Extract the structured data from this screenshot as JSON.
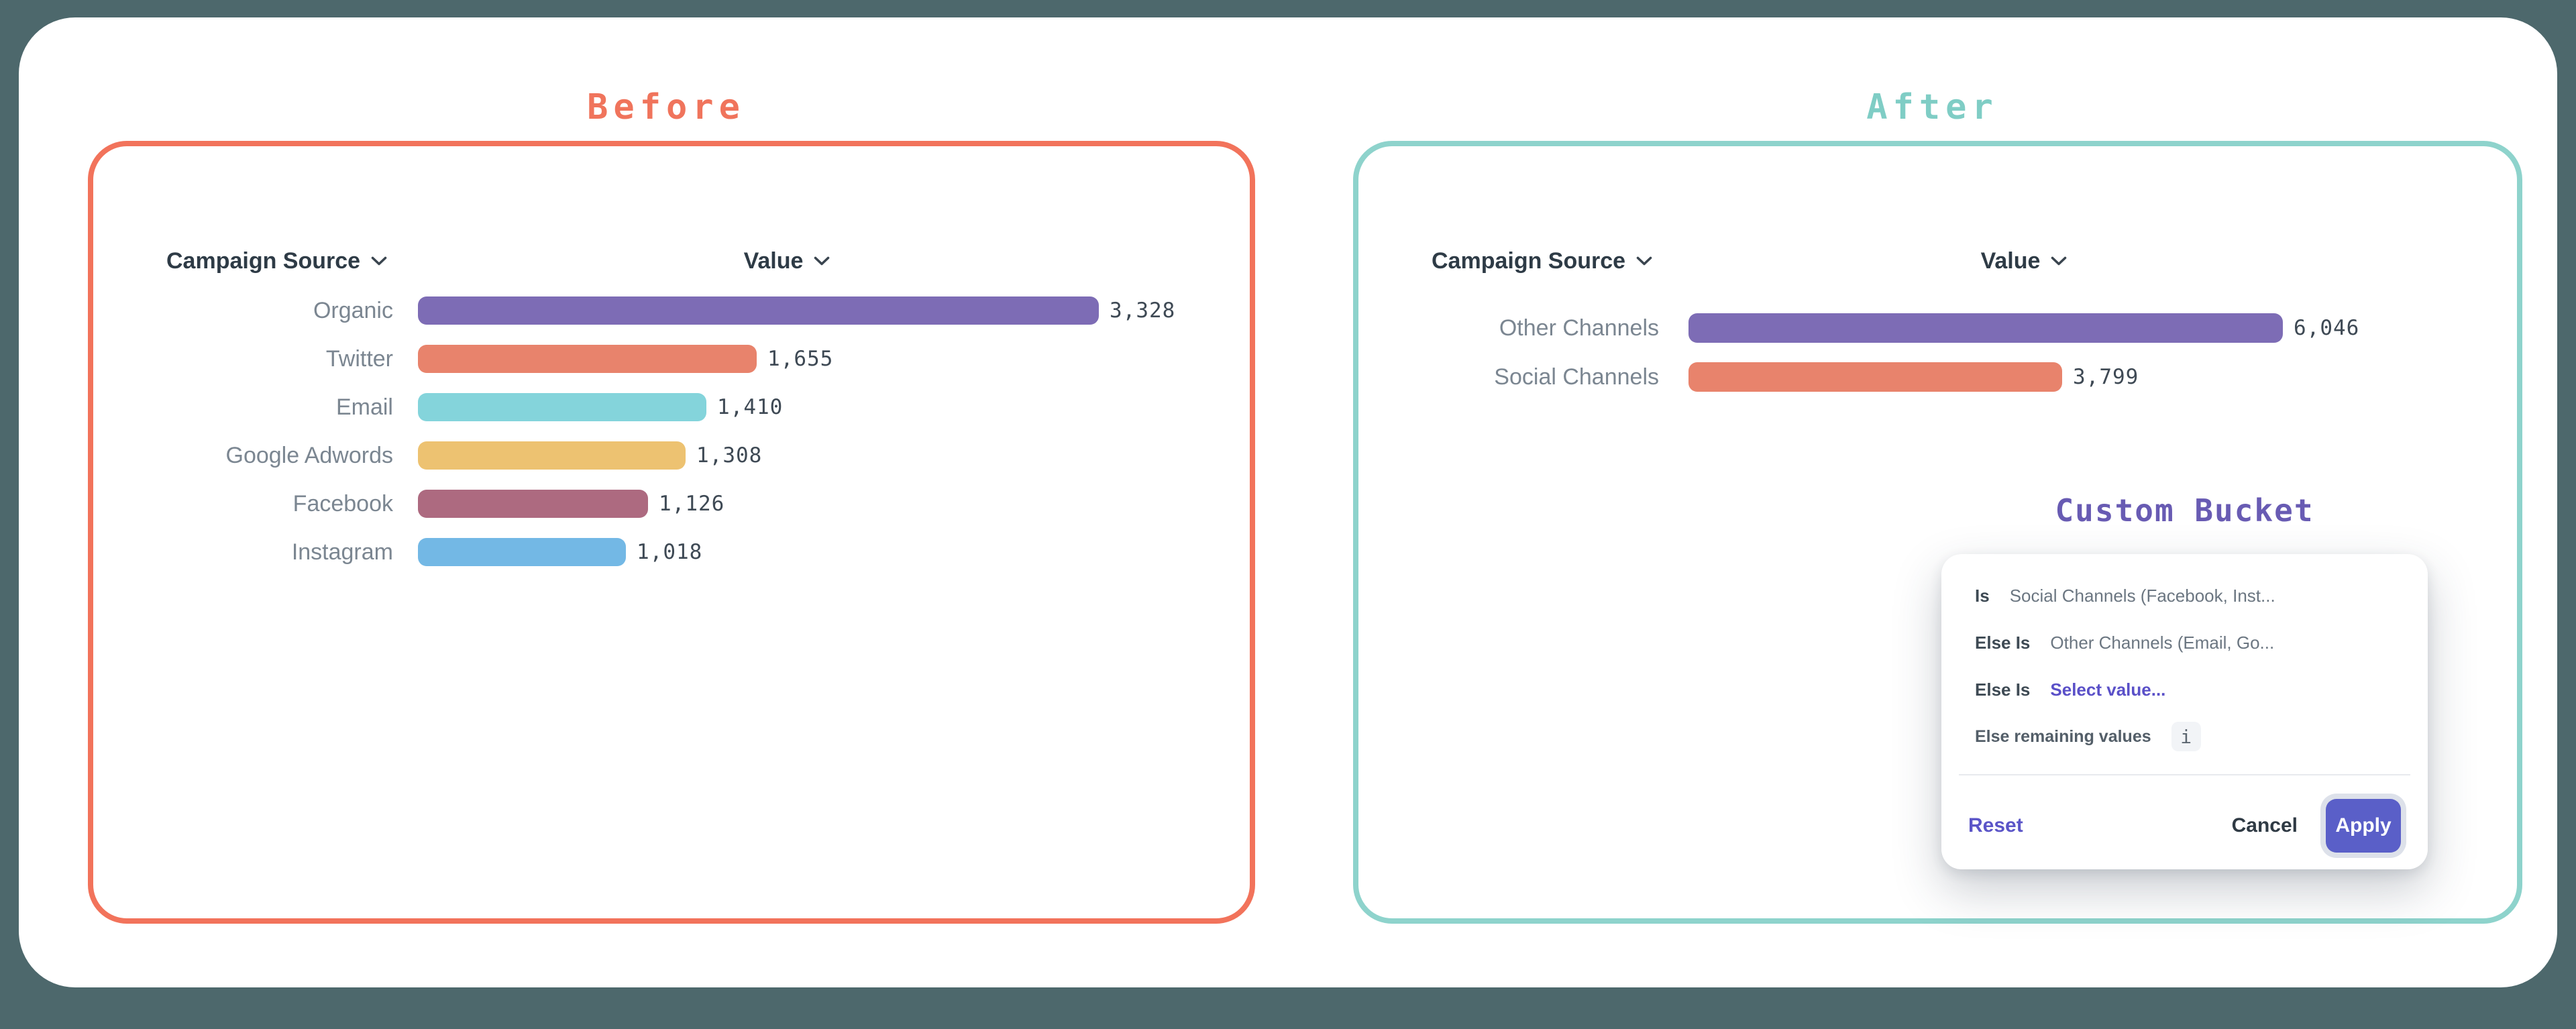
{
  "page": {
    "background": "#4d686c",
    "card_background": "#ffffff"
  },
  "before_panel": {
    "title": "Before",
    "accent": "#f2735b",
    "title_color": "#f0745c"
  },
  "after_panel": {
    "title": "After",
    "accent": "#8ed3cc",
    "title_color": "#7fcdc5"
  },
  "chart_data": [
    {
      "type": "bar",
      "orientation": "horizontal",
      "panel": "Before",
      "column_headers": [
        "Campaign Source",
        "Value"
      ],
      "categories": [
        "Organic",
        "Twitter",
        "Email",
        "Google Adwords",
        "Facebook",
        "Instagram"
      ],
      "values": [
        3328,
        1655,
        1410,
        1308,
        1126,
        1018
      ],
      "value_labels": [
        "3,328",
        "1,655",
        "1,410",
        "1,308",
        "1,126",
        "1,018"
      ],
      "bar_colors": [
        "#7d6cb5",
        "#e8836c",
        "#84d4db",
        "#edc271",
        "#ad6a80",
        "#73b8e5"
      ],
      "xlim": [
        0,
        3328
      ],
      "grid": false,
      "sort": "descending"
    },
    {
      "type": "bar",
      "orientation": "horizontal",
      "panel": "After",
      "column_headers": [
        "Campaign Source",
        "Value"
      ],
      "categories": [
        "Other Channels",
        "Social Channels"
      ],
      "values": [
        6046,
        3799
      ],
      "value_labels": [
        "6,046",
        "3,799"
      ],
      "bar_colors": [
        "#7d6cb5",
        "#e8836c"
      ],
      "xlim": [
        0,
        6046
      ],
      "grid": false,
      "sort": "descending"
    }
  ],
  "custom_bucket": {
    "title": "Custom Bucket",
    "title_color": "#685bb3",
    "link_color": "#5a50c8",
    "apply_color": "#5a5fc8",
    "reset_color": "#5b55c8",
    "info_icon": "i",
    "rules": [
      {
        "term": "Is",
        "value": "Social Channels (Facebook, Inst...",
        "style": "text"
      },
      {
        "term": "Else Is",
        "value": "Other Channels (Email, Go...",
        "style": "text"
      },
      {
        "term": "Else Is",
        "value": "Select value...",
        "style": "link"
      },
      {
        "term": "Else remaining values",
        "value": "",
        "style": "info"
      }
    ],
    "reset_label": "Reset",
    "cancel_label": "Cancel",
    "apply_label": "Apply"
  }
}
